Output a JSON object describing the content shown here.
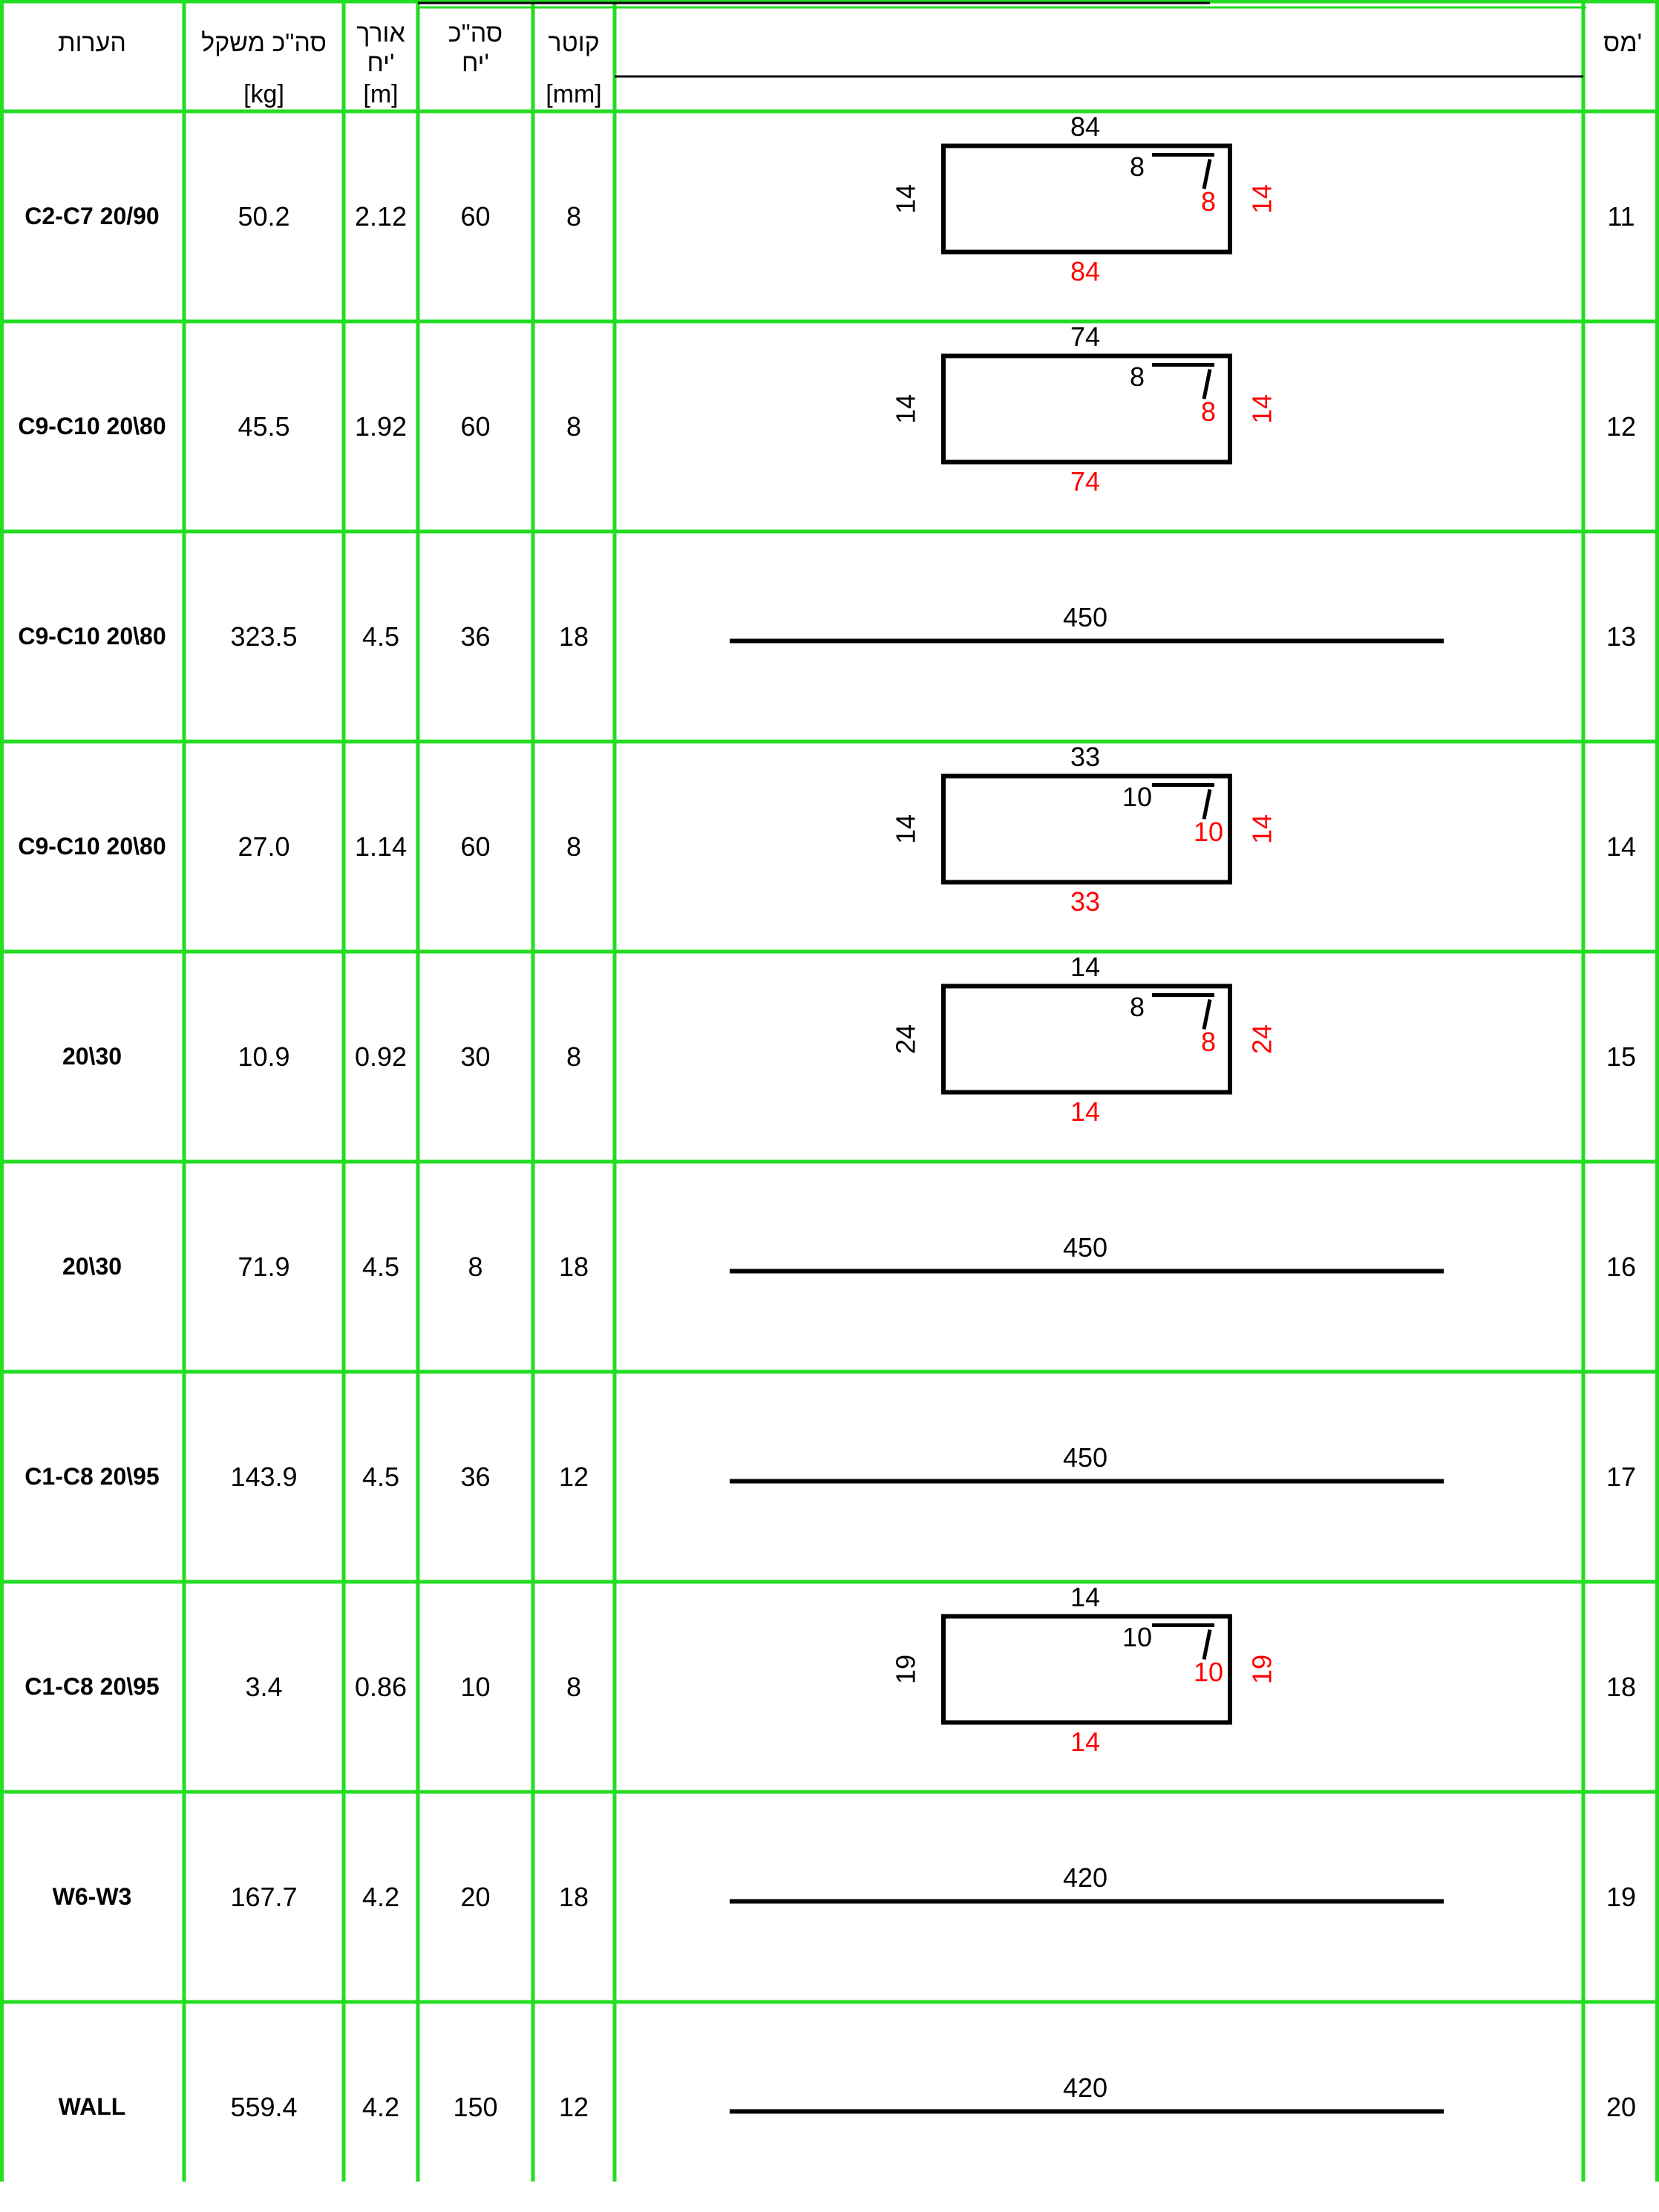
{
  "colors": {
    "grid": "#22dd22",
    "text": "#000000",
    "accent": "#ff0000"
  },
  "header": {
    "no": "מס'",
    "diameter": "קוטר",
    "count_line1": "סה\"כ",
    "count_line2": "יח'",
    "length_line1": "אורך",
    "length_line2": "יח'",
    "weight": "סה\"כ משקל",
    "notes": "הערות",
    "units": {
      "diameter": "[mm]",
      "length": "[m]",
      "weight": "[kg]"
    }
  },
  "rows": [
    {
      "no": "11",
      "diameter": "8",
      "count": "60",
      "length": "2.12",
      "weight": "50.2",
      "note": "C2-C7 20/90",
      "shape": {
        "kind": "stirrup",
        "top": "84",
        "bottom": "84",
        "left": "14",
        "right": "14",
        "hook": "8",
        "hook_red": "8"
      }
    },
    {
      "no": "12",
      "diameter": "8",
      "count": "60",
      "length": "1.92",
      "weight": "45.5",
      "note": "C9-C10 20\\80",
      "shape": {
        "kind": "stirrup",
        "top": "74",
        "bottom": "74",
        "left": "14",
        "right": "14",
        "hook": "8",
        "hook_red": "8"
      }
    },
    {
      "no": "13",
      "diameter": "18",
      "count": "36",
      "length": "4.5",
      "weight": "323.5",
      "note": "C9-C10 20\\80",
      "shape": {
        "kind": "bar",
        "label": "450"
      }
    },
    {
      "no": "14",
      "diameter": "8",
      "count": "60",
      "length": "1.14",
      "weight": "27.0",
      "note": "C9-C10 20\\80",
      "shape": {
        "kind": "stirrup",
        "top": "33",
        "bottom": "33",
        "left": "14",
        "right": "14",
        "hook": "10",
        "hook_red": "10"
      }
    },
    {
      "no": "15",
      "diameter": "8",
      "count": "30",
      "length": "0.92",
      "weight": "10.9",
      "note": "20\\30",
      "shape": {
        "kind": "stirrup",
        "top": "14",
        "bottom": "14",
        "left": "24",
        "right": "24",
        "hook": "8",
        "hook_red": "8"
      }
    },
    {
      "no": "16",
      "diameter": "18",
      "count": "8",
      "length": "4.5",
      "weight": "71.9",
      "note": "20\\30",
      "shape": {
        "kind": "bar",
        "label": "450"
      }
    },
    {
      "no": "17",
      "diameter": "12",
      "count": "36",
      "length": "4.5",
      "weight": "143.9",
      "note": "C1-C8 20\\95",
      "shape": {
        "kind": "bar",
        "label": "450"
      }
    },
    {
      "no": "18",
      "diameter": "8",
      "count": "10",
      "length": "0.86",
      "weight": "3.4",
      "note": "C1-C8 20\\95",
      "shape": {
        "kind": "stirrup",
        "top": "14",
        "bottom": "14",
        "left": "19",
        "right": "19",
        "hook": "10",
        "hook_red": "10"
      }
    },
    {
      "no": "19",
      "diameter": "18",
      "count": "20",
      "length": "4.2",
      "weight": "167.7",
      "note": "W6-W3",
      "shape": {
        "kind": "bar",
        "label": "420"
      }
    },
    {
      "no": "20",
      "diameter": "12",
      "count": "150",
      "length": "4.2",
      "weight": "559.4",
      "note": "WALL",
      "shape": {
        "kind": "bar",
        "label": "420"
      }
    }
  ]
}
